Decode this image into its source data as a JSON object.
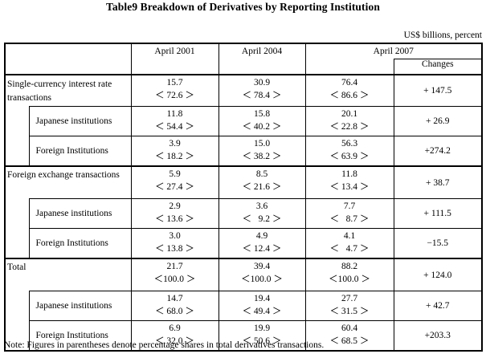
{
  "title": "Table9  Breakdown of Derivatives by Reporting Institution",
  "unit": "US$ billions, percent",
  "columns": {
    "april2001": "April 2001",
    "april2004": "April 2004",
    "april2007": "April 2007",
    "changes": "Changes"
  },
  "rows": [
    {
      "label": "Single-currency interest rate transactions",
      "label_line1": "Single-currency interest rate",
      "label_line2": "transactions",
      "v2001": "15.7",
      "p2001": "＜ 72.6 ＞",
      "v2004": "30.9",
      "p2004": "＜ 78.4 ＞",
      "v2007": "76.4",
      "p2007": "＜ 86.6 ＞",
      "change": "+ 147.5"
    },
    {
      "label": "Japanese institutions",
      "v2001": "11.8",
      "p2001": "＜ 54.4 ＞",
      "v2004": "15.8",
      "p2004": "＜ 40.2 ＞",
      "v2007": "20.1",
      "p2007": "＜ 22.8 ＞",
      "change": "+ 26.9"
    },
    {
      "label": "Foreign Institutions",
      "v2001": "3.9",
      "p2001": "＜ 18.2 ＞",
      "v2004": "15.0",
      "p2004": "＜ 38.2 ＞",
      "v2007": "56.3",
      "p2007": "＜ 63.9 ＞",
      "change": "+274.2"
    },
    {
      "label": "Foreign exchange transactions",
      "v2001": "5.9",
      "p2001": "＜ 27.4 ＞",
      "v2004": "8.5",
      "p2004": "＜ 21.6 ＞",
      "v2007": "11.8",
      "p2007": "＜ 13.4 ＞",
      "change": "+ 38.7"
    },
    {
      "label": "Japanese institutions",
      "v2001": "2.9",
      "p2001": "＜ 13.6 ＞",
      "v2004": "3.6",
      "p2004": "＜   9.2 ＞",
      "v2007": "7.7",
      "p2007": "＜   8.7 ＞",
      "change": "+ 111.5"
    },
    {
      "label": "Foreign Institutions",
      "v2001": "3.0",
      "p2001": "＜ 13.8 ＞",
      "v2004": "4.9",
      "p2004": "＜ 12.4 ＞",
      "v2007": "4.1",
      "p2007": "＜   4.7 ＞",
      "change": "−15.5"
    },
    {
      "label": "Total",
      "v2001": "21.7",
      "p2001": "＜100.0 ＞",
      "v2004": "39.4",
      "p2004": "＜100.0 ＞",
      "v2007": "88.2",
      "p2007": "＜100.0 ＞",
      "change": "+ 124.0"
    },
    {
      "label": "Japanese institutions",
      "v2001": "14.7",
      "p2001": "＜ 68.0 ＞",
      "v2004": "19.4",
      "p2004": "＜ 49.4 ＞",
      "v2007": "27.7",
      "p2007": "＜ 31.5 ＞",
      "change": "+ 42.7"
    },
    {
      "label": "Foreign Institutions",
      "v2001": "6.9",
      "p2001": "＜ 32.0 ＞",
      "v2004": "19.9",
      "p2004": "＜ 50.6 ＞",
      "v2007": "60.4",
      "p2007": "＜ 68.5 ＞",
      "change": "+203.3"
    }
  ],
  "note": "Note: Figures in parentheses denote percentage shares in total derivatives transactions."
}
